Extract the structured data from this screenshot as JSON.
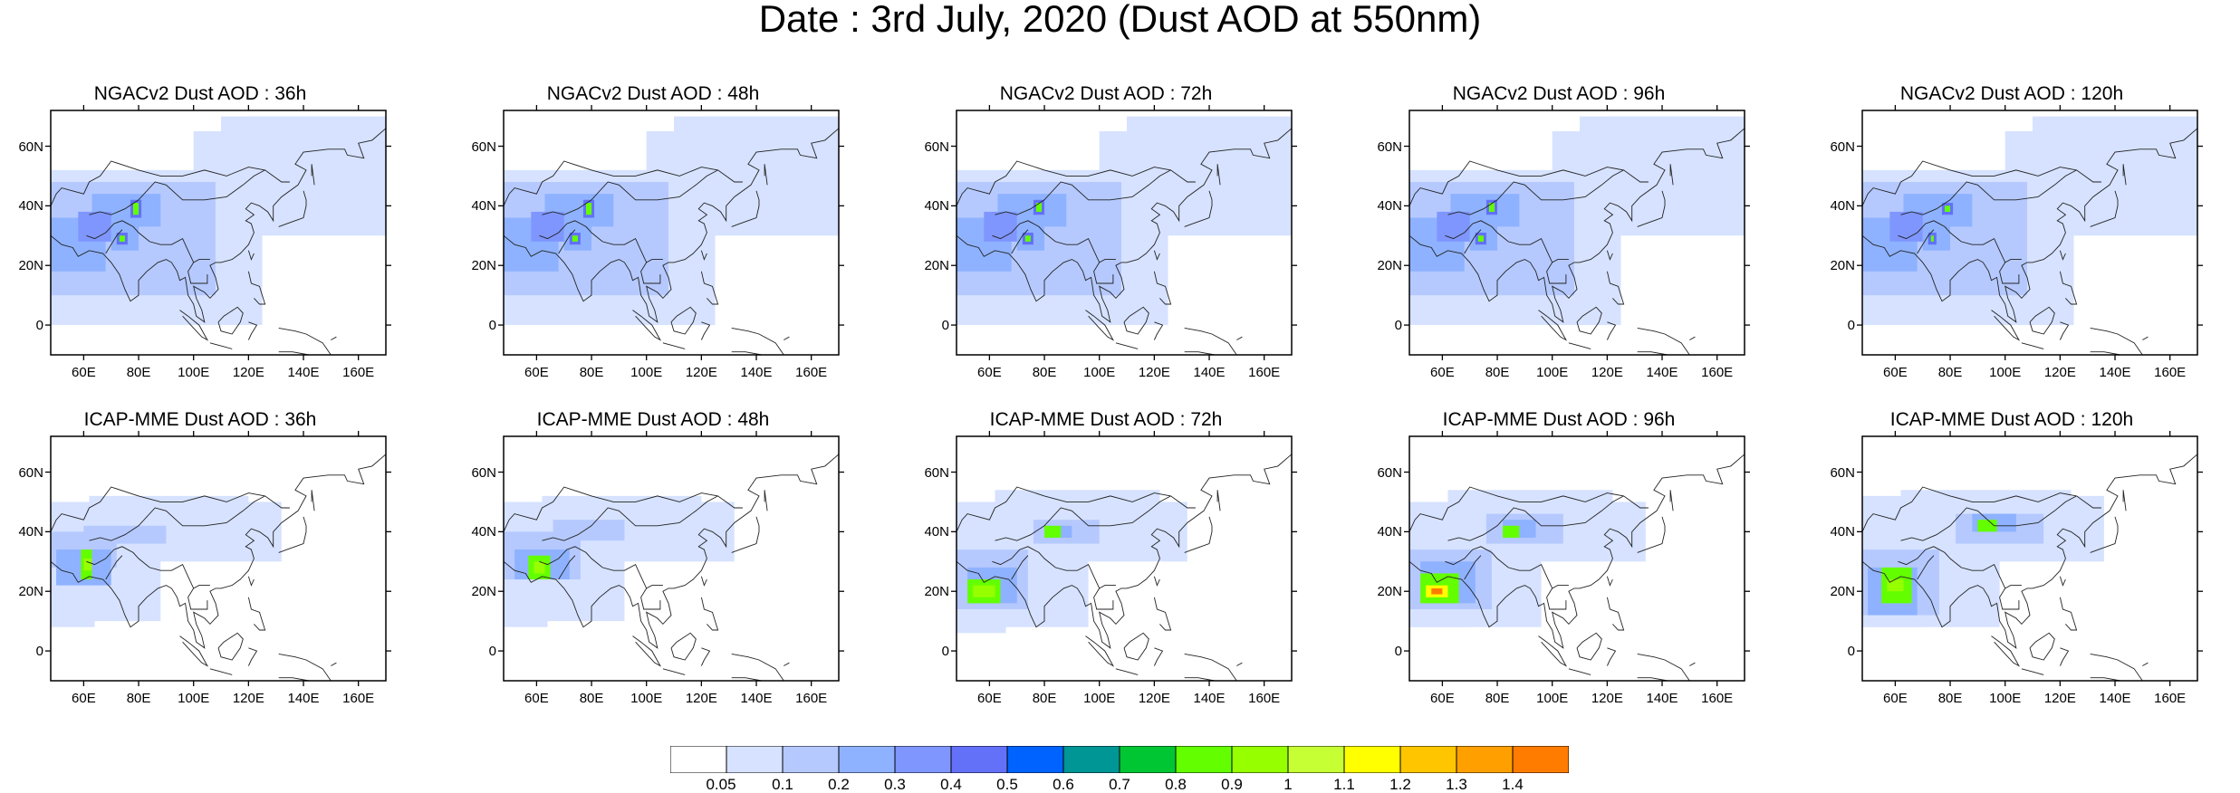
{
  "title": "Date : 3rd July, 2020 (Dust AOD at 550nm)",
  "y_ticks": [
    "60N",
    "40N",
    "20N",
    "0"
  ],
  "x_ticks": [
    "60E",
    "80E",
    "100E",
    "120E",
    "140E",
    "160E"
  ],
  "panels": [
    {
      "title": "NGACv2 Dust AOD : 36h",
      "model": "NGACv2",
      "lead": "36h"
    },
    {
      "title": "NGACv2 Dust AOD : 48h",
      "model": "NGACv2",
      "lead": "48h"
    },
    {
      "title": "NGACv2 Dust AOD : 72h",
      "model": "NGACv2",
      "lead": "72h"
    },
    {
      "title": "NGACv2 Dust AOD : 96h",
      "model": "NGACv2",
      "lead": "96h"
    },
    {
      "title": "NGACv2 Dust AOD : 120h",
      "model": "NGACv2",
      "lead": "120h"
    },
    {
      "title": "ICAP-MME Dust AOD : 36h",
      "model": "ICAP-MME",
      "lead": "36h"
    },
    {
      "title": "ICAP-MME Dust AOD : 48h",
      "model": "ICAP-MME",
      "lead": "48h"
    },
    {
      "title": "ICAP-MME Dust AOD : 72h",
      "model": "ICAP-MME",
      "lead": "72h"
    },
    {
      "title": "ICAP-MME Dust AOD : 96h",
      "model": "ICAP-MME",
      "lead": "96h"
    },
    {
      "title": "ICAP-MME Dust AOD : 120h",
      "model": "ICAP-MME",
      "lead": "120h"
    }
  ],
  "colorbar": {
    "labels": [
      "0.05",
      "0.1",
      "0.2",
      "0.3",
      "0.4",
      "0.5",
      "0.6",
      "0.7",
      "0.8",
      "0.9",
      "1",
      "1.1",
      "1.2",
      "1.3",
      "1.4"
    ],
    "colors": [
      "#ffffff",
      "#d6e2ff",
      "#b5c9ff",
      "#8eb2ff",
      "#7f96ff",
      "#6370f8",
      "#0063ff",
      "#009696",
      "#00c633",
      "#63ff00",
      "#96ff00",
      "#c6ff33",
      "#ffff00",
      "#ffc600",
      "#ffa000",
      "#ff7c00",
      "#ff1900"
    ]
  }
}
